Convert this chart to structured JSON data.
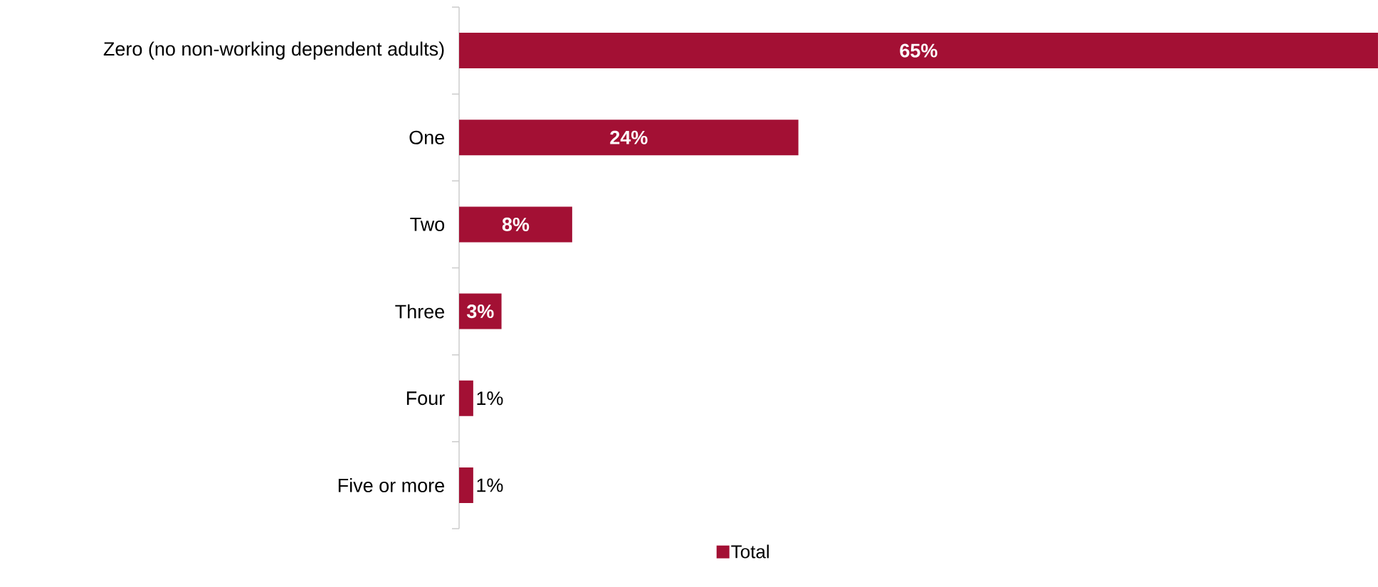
{
  "chart_data": {
    "type": "bar",
    "orientation": "horizontal",
    "categories": [
      "Zero (no non-working dependent adults)",
      "One",
      "Two",
      "Three",
      "Four",
      "Five or more"
    ],
    "series": [
      {
        "name": "Total",
        "color": "#a31034",
        "values": [
          65,
          24,
          8,
          3,
          1,
          1
        ],
        "value_labels": [
          "65%",
          "24%",
          "8%",
          "3%",
          "1%",
          "1%"
        ]
      }
    ],
    "legend": "bottom"
  }
}
